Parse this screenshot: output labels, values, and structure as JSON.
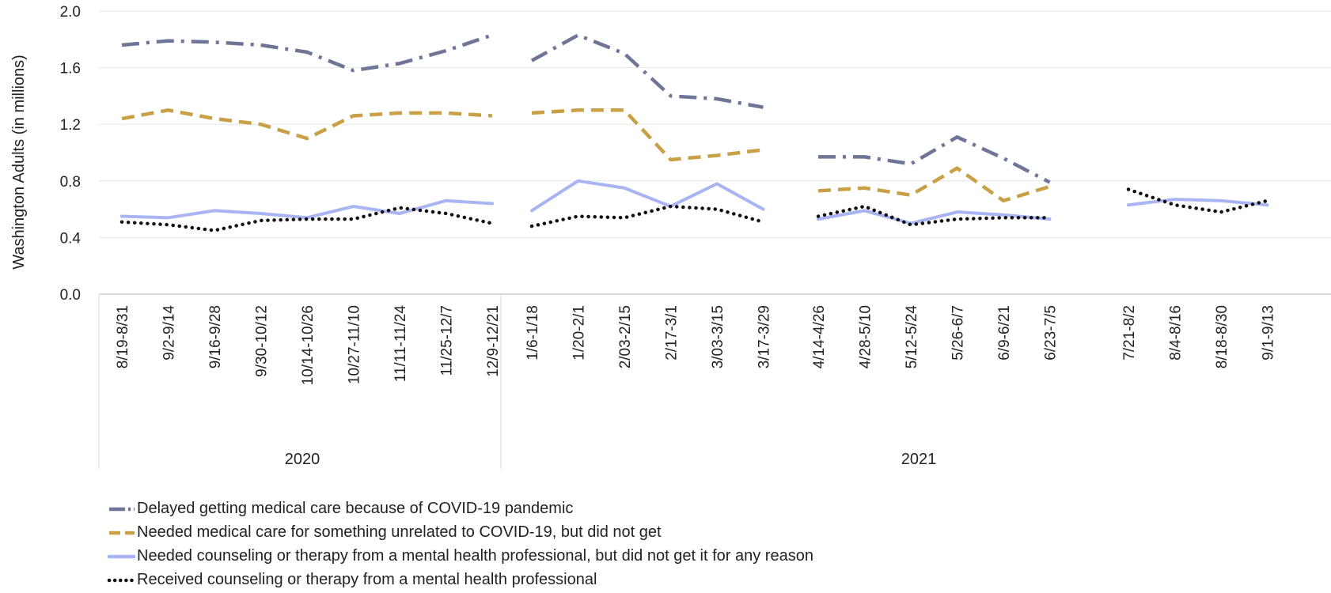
{
  "chart_data": {
    "type": "line",
    "title": "",
    "xlabel": "",
    "ylabel": "Washington Adults (in millions)",
    "ylim": [
      0,
      2.0
    ],
    "yticks": [
      "0.0",
      "0.4",
      "0.8",
      "1.2",
      "1.6",
      "2.0"
    ],
    "grid": true,
    "legend_position": "bottom",
    "groups": [
      {
        "label": "2020",
        "categories": [
          "8/19-8/31",
          "9/2-9/14",
          "9/16-9/28",
          "9/30-10/12",
          "10/14-10/26",
          "10/27-11/10",
          "11/11-11/24",
          "11/25-12/7",
          "12/9-12/21"
        ]
      },
      {
        "label": "2021",
        "segments": [
          [
            "1/6-1/18",
            "1/20-2/1",
            "2/03-2/15",
            "2/17-3/1",
            "3/03-3/15",
            "3/17-3/29"
          ],
          [
            "4/14-4/26",
            "4/28-5/10",
            "5/12-5/24",
            "5/26-6/7",
            "6/9-6/21",
            "6/23-7/5"
          ],
          [
            "7/21-8/2",
            "8/4-8/16",
            "8/18-8/30",
            "9/1-9/13"
          ]
        ]
      }
    ],
    "series": [
      {
        "name": "Delayed getting medical care because of COVID-19 pandemic",
        "color": "#6f7596",
        "dash": "dash-dot",
        "segments": [
          [
            1.76,
            1.79,
            1.78,
            1.76,
            1.71,
            1.58,
            1.63,
            1.72,
            1.83
          ],
          [
            1.65,
            1.83,
            1.7,
            1.4,
            1.38,
            1.32
          ],
          [
            0.97,
            0.97,
            0.92,
            1.11,
            0.96,
            0.79
          ],
          []
        ]
      },
      {
        "name": "Needed medical care for something unrelated to COVID-19, but did not get",
        "color": "#c9a046",
        "dash": "dash",
        "segments": [
          [
            1.24,
            1.3,
            1.24,
            1.2,
            1.1,
            1.26,
            1.28,
            1.28,
            1.26
          ],
          [
            1.28,
            1.3,
            1.3,
            0.95,
            0.98,
            1.02
          ],
          [
            0.73,
            0.75,
            0.7,
            0.89,
            0.66,
            0.76
          ],
          []
        ]
      },
      {
        "name": "Needed counseling or therapy from a mental health professional, but did not get it for any reason",
        "color": "#a9b4f2",
        "dash": "solid",
        "segments": [
          [
            0.55,
            0.54,
            0.59,
            0.57,
            0.54,
            0.62,
            0.57,
            0.66,
            0.64
          ],
          [
            0.59,
            0.8,
            0.75,
            0.62,
            0.78,
            0.6
          ],
          [
            0.53,
            0.59,
            0.5,
            0.58,
            0.56,
            0.53
          ],
          [
            0.63,
            0.67,
            0.66,
            0.63
          ]
        ]
      },
      {
        "name": "Received counseling or therapy from a mental health professional",
        "color": "#111111",
        "dash": "dot",
        "segments": [
          [
            0.51,
            0.49,
            0.45,
            0.52,
            0.53,
            0.53,
            0.61,
            0.57,
            0.5
          ],
          [
            0.48,
            0.55,
            0.54,
            0.62,
            0.6,
            0.51
          ],
          [
            0.55,
            0.62,
            0.49,
            0.53,
            0.54,
            0.54
          ],
          [
            0.74,
            0.63,
            0.58,
            0.66
          ]
        ]
      }
    ]
  }
}
